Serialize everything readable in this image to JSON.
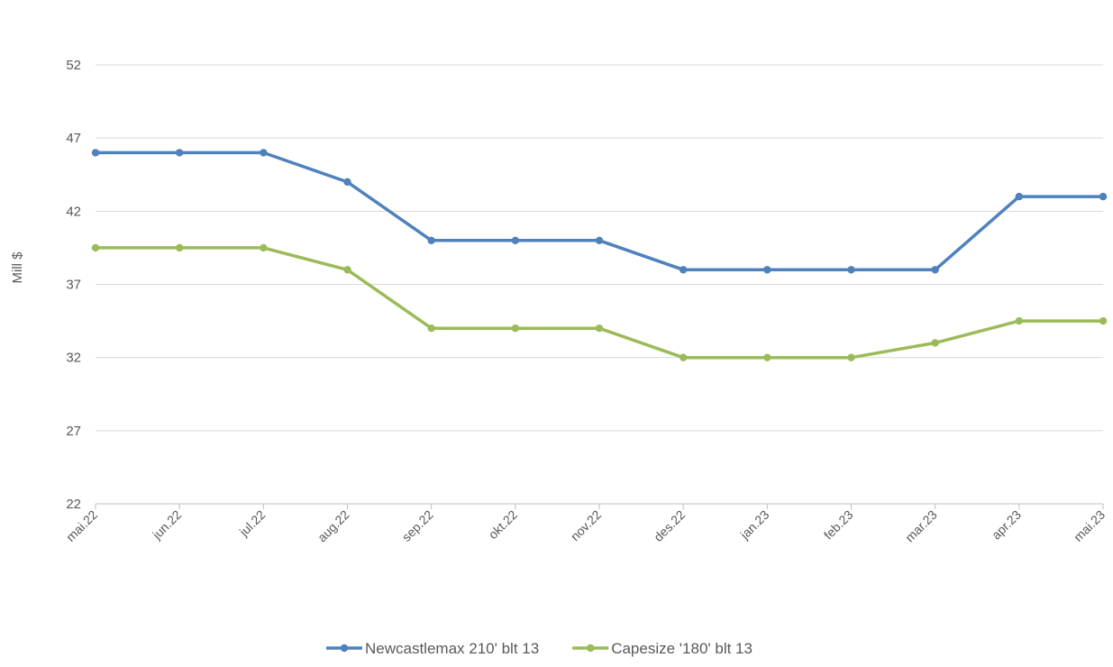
{
  "chart_data": {
    "type": "line",
    "title": "",
    "xlabel": "",
    "ylabel": "Mill $",
    "categories": [
      "mai.22",
      "jun.22",
      "jul.22",
      "aug.22",
      "sep.22",
      "okt.22",
      "nov.22",
      "des.22",
      "jan.23",
      "feb.23",
      "mar.23",
      "apr.23",
      "mai.23"
    ],
    "ylim": [
      22,
      52
    ],
    "yticks": [
      22,
      27,
      32,
      37,
      42,
      47,
      52
    ],
    "grid": true,
    "legend_position": "bottom",
    "series": [
      {
        "name": "Newcastlemax 210' blt 13",
        "color": "#4f81bd",
        "values": [
          46,
          46,
          46,
          44,
          40,
          40,
          40,
          38,
          38,
          38,
          38,
          43,
          43
        ]
      },
      {
        "name": "Capesize '180' blt 13",
        "color": "#9bbb59",
        "values": [
          39.5,
          39.5,
          39.5,
          38,
          34,
          34,
          34,
          32,
          32,
          32,
          33,
          34.5,
          34.5
        ]
      }
    ]
  }
}
